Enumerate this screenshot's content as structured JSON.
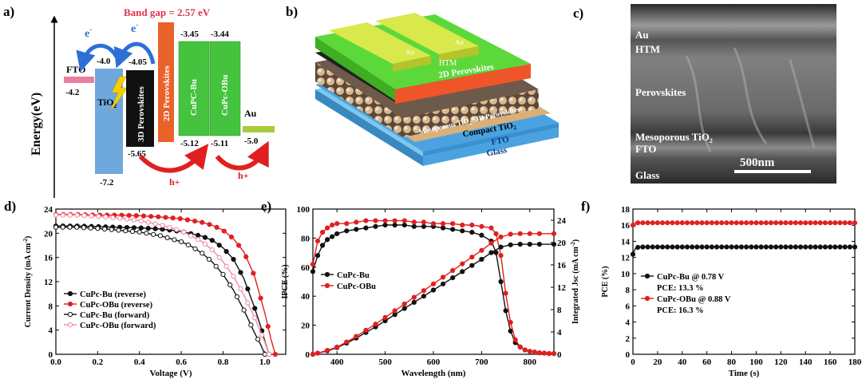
{
  "panel_labels": {
    "a": "a)",
    "b": "b)",
    "c": "c)",
    "d": "d)",
    "e": "e)",
    "f": "f)"
  },
  "panel_a": {
    "y_axis_label": "Energy(eV)",
    "band_gap": "Band gap = 2.57 eV",
    "electron": "e",
    "electron_sup": "-",
    "hole": "h+",
    "layers": {
      "fto": "FTO",
      "tio2": "TiO",
      "tio2_sub": "2",
      "perov3d": "3D Perovskites",
      "perov2d": "2D Perovskites",
      "cupc_bu": "CuPC-Bu",
      "cupc_obu": "CuPc-OBu",
      "au": "Au"
    },
    "levels": {
      "fto": "-4.2",
      "tio2_top": "-4.0",
      "tio2_bot": "-7.2",
      "p3d_top": "-4.05",
      "p3d_bot": "-5.65",
      "bu_top": "-3.45",
      "obu_top": "-3.44",
      "bu_bot": "-5.12",
      "obu_bot": "-5.11",
      "au": "-5.0"
    },
    "colors": {
      "fto": "#e87fa0",
      "tio2": "#6fa8dc",
      "perov3d": "#111111",
      "perov2d": "#e8622a",
      "cupc": "#45c33f",
      "au": "#a8cc3c",
      "arrow_blue": "#2e6fd6",
      "arrow_red": "#e02020",
      "lightning": "#f4d000"
    }
  },
  "panel_b": {
    "au1": "Au",
    "au2": "Au",
    "htm": "HTM",
    "perov2d": "2D Perovskites",
    "meso": "Mesoporous TiO",
    "meso_sub": "2",
    "meso_tail": "+3D Perovskites",
    "compact": "Compact TiO",
    "compact_sub": "2",
    "fto": "FTO",
    "glass": "Glass",
    "colors": {
      "au": "#c7d83a",
      "htm": "#5dd83a",
      "perov2d": "#f0552a",
      "meso": "#6e5a4a",
      "compact": "#d9b07a",
      "fto": "#4aa3e0",
      "glass": "#7ec7ef"
    }
  },
  "panel_c": {
    "au": "Au",
    "htm": "HTM",
    "perov": "Perovskites",
    "meso": "Mesoporous TiO",
    "meso_sub": "2",
    "fto": "FTO",
    "glass": "Glass",
    "scale": "500nm"
  },
  "chart_data": [
    {
      "id": "d",
      "type": "line",
      "xlabel": "Voltage (V)",
      "ylabel": "Current Density (mA cm",
      "ylabel_sup": "-2",
      "ylabel_tail": ")",
      "xlim": [
        0.0,
        1.1
      ],
      "ylim": [
        0,
        24
      ],
      "xticks": [
        "0.0",
        "0.2",
        "0.4",
        "0.6",
        "0.8",
        "1.0"
      ],
      "yticks": [
        "0",
        "4",
        "8",
        "12",
        "16",
        "20",
        "24"
      ],
      "legend_position": "bottom-left",
      "series": [
        {
          "name": "CuPc-Bu (reverse)",
          "color": "#111111",
          "filled": true,
          "x": [
            0.0,
            0.1,
            0.2,
            0.3,
            0.4,
            0.5,
            0.6,
            0.7,
            0.75,
            0.8,
            0.85,
            0.9,
            0.95,
            0.98,
            1.0,
            1.02
          ],
          "y": [
            21.2,
            21.2,
            21.1,
            21.0,
            20.9,
            20.7,
            20.3,
            19.5,
            18.8,
            17.6,
            15.7,
            12.5,
            7.8,
            4.6,
            2.2,
            0.0
          ]
        },
        {
          "name": "CuPc-OBu (reverse)",
          "color": "#e02020",
          "filled": true,
          "x": [
            0.0,
            0.1,
            0.2,
            0.3,
            0.4,
            0.5,
            0.6,
            0.7,
            0.75,
            0.8,
            0.85,
            0.9,
            0.95,
            1.0,
            1.03,
            1.05
          ],
          "y": [
            23.1,
            23.1,
            23.0,
            23.0,
            22.9,
            22.7,
            22.4,
            21.8,
            21.3,
            20.5,
            19.1,
            16.9,
            13.0,
            6.8,
            2.4,
            0.0
          ]
        },
        {
          "name": "CuPc-Bu (forward)",
          "color": "#111111",
          "filled": false,
          "x": [
            0.0,
            0.1,
            0.2,
            0.3,
            0.4,
            0.5,
            0.6,
            0.65,
            0.7,
            0.75,
            0.8,
            0.85,
            0.9,
            0.95,
            0.98,
            1.0
          ],
          "y": [
            21.0,
            21.0,
            20.8,
            20.5,
            20.2,
            19.6,
            18.6,
            17.8,
            16.7,
            15.2,
            13.2,
            10.6,
            7.3,
            3.6,
            1.6,
            0.0
          ]
        },
        {
          "name": "CuPc-OBu (forward)",
          "color": "#f08aa0",
          "filled": false,
          "x": [
            0.0,
            0.1,
            0.2,
            0.3,
            0.4,
            0.5,
            0.6,
            0.7,
            0.75,
            0.8,
            0.85,
            0.9,
            0.95,
            1.0,
            1.02
          ],
          "y": [
            23.0,
            23.0,
            22.8,
            22.5,
            22.1,
            21.4,
            20.4,
            18.6,
            17.2,
            15.3,
            12.9,
            9.8,
            6.2,
            2.0,
            0.0
          ]
        }
      ]
    },
    {
      "id": "e",
      "type": "line",
      "xlabel": "Wavelength (nm)",
      "ylabel": "IPCE (%)",
      "ylabel_right": "Integrated Jsc (mA cm",
      "ylabel_right_sup": "-2",
      "ylabel_right_tail": ")",
      "xlim": [
        350,
        850
      ],
      "ylim": [
        0,
        100
      ],
      "ylim_right": [
        0,
        26
      ],
      "xticks": [
        "400",
        "500",
        "600",
        "700",
        "800"
      ],
      "yticks": [
        "0",
        "20",
        "40",
        "60",
        "80",
        "100"
      ],
      "yticks_right": [
        "0",
        "4",
        "8",
        "12",
        "16",
        "20",
        "24"
      ],
      "legend_position": "center-left",
      "series": [
        {
          "name": "CuPc-Bu",
          "color": "#111111",
          "axis": "left",
          "x": [
            350,
            360,
            370,
            380,
            390,
            400,
            420,
            440,
            460,
            480,
            500,
            520,
            540,
            560,
            580,
            600,
            620,
            640,
            660,
            680,
            700,
            720,
            730,
            740,
            750,
            760,
            770,
            780,
            790,
            800,
            810,
            820,
            830,
            840,
            850
          ],
          "y": [
            57,
            68,
            75,
            79,
            81,
            83,
            85,
            86,
            87,
            88,
            89,
            89,
            89,
            88,
            88,
            88,
            87,
            86,
            85,
            84,
            82,
            78,
            70,
            50,
            30,
            16,
            8,
            5,
            3,
            2,
            1.5,
            1,
            0.8,
            0.5,
            0.5
          ]
        },
        {
          "name": "CuPc-OBu",
          "color": "#e02020",
          "axis": "left",
          "x": [
            350,
            360,
            370,
            380,
            390,
            400,
            420,
            440,
            460,
            480,
            500,
            520,
            540,
            560,
            580,
            600,
            620,
            640,
            660,
            680,
            700,
            720,
            730,
            740,
            750,
            760,
            770,
            780,
            790,
            800,
            810,
            820,
            830,
            840,
            850
          ],
          "y": [
            62,
            78,
            84,
            87,
            89,
            90,
            90,
            91,
            92,
            92,
            92,
            92,
            92,
            91,
            91,
            90,
            90,
            90,
            89,
            89,
            88,
            87,
            83,
            68,
            42,
            22,
            10,
            5,
            3,
            2,
            1.5,
            1,
            0.8,
            0.5,
            0.5
          ]
        },
        {
          "name": "",
          "color": "#111111",
          "axis": "right",
          "x": [
            350,
            360,
            380,
            400,
            420,
            440,
            460,
            480,
            500,
            520,
            540,
            560,
            580,
            600,
            620,
            640,
            660,
            680,
            700,
            720,
            740,
            760,
            780,
            800,
            820,
            850
          ],
          "y": [
            0,
            0.2,
            0.6,
            1.2,
            2.0,
            2.9,
            3.9,
            4.9,
            6.0,
            7.1,
            8.2,
            9.3,
            10.4,
            11.5,
            12.6,
            13.7,
            14.8,
            15.9,
            17.0,
            18.2,
            19.2,
            19.6,
            19.7,
            19.7,
            19.7,
            19.7
          ]
        },
        {
          "name": "",
          "color": "#e02020",
          "axis": "right",
          "x": [
            350,
            360,
            380,
            400,
            420,
            440,
            460,
            480,
            500,
            520,
            540,
            560,
            580,
            600,
            620,
            640,
            660,
            680,
            700,
            720,
            740,
            760,
            780,
            800,
            820,
            850
          ],
          "y": [
            0,
            0.2,
            0.7,
            1.3,
            2.2,
            3.2,
            4.3,
            5.4,
            6.6,
            7.8,
            9.0,
            10.2,
            11.4,
            12.6,
            13.8,
            15.0,
            16.2,
            17.4,
            18.6,
            19.9,
            21.0,
            21.5,
            21.6,
            21.6,
            21.6,
            21.6
          ]
        }
      ]
    },
    {
      "id": "f",
      "type": "line",
      "xlabel": "Time (s)",
      "ylabel": "PCE (%)",
      "xlim": [
        0,
        180
      ],
      "ylim": [
        0,
        18
      ],
      "xticks": [
        "0",
        "20",
        "40",
        "60",
        "80",
        "100",
        "120",
        "140",
        "160",
        "180"
      ],
      "yticks": [
        "0",
        "2",
        "4",
        "6",
        "8",
        "10",
        "12",
        "14",
        "16",
        "18"
      ],
      "legend_position": "center-left",
      "series": [
        {
          "name": "CuPc-Bu @ 0.78 V",
          "note": "PCE: 13.3 %",
          "color": "#111111",
          "x": [
            0,
            1,
            2,
            3,
            5,
            180
          ],
          "y": [
            12.4,
            12.8,
            13.1,
            13.2,
            13.3,
            13.3
          ]
        },
        {
          "name": "CuPc-OBu @ 0.88 V",
          "note": "PCE: 16.3 %",
          "color": "#e02020",
          "x": [
            0,
            1,
            2,
            3,
            5,
            180
          ],
          "y": [
            16.0,
            16.2,
            16.3,
            16.3,
            16.3,
            16.3
          ]
        }
      ]
    }
  ]
}
